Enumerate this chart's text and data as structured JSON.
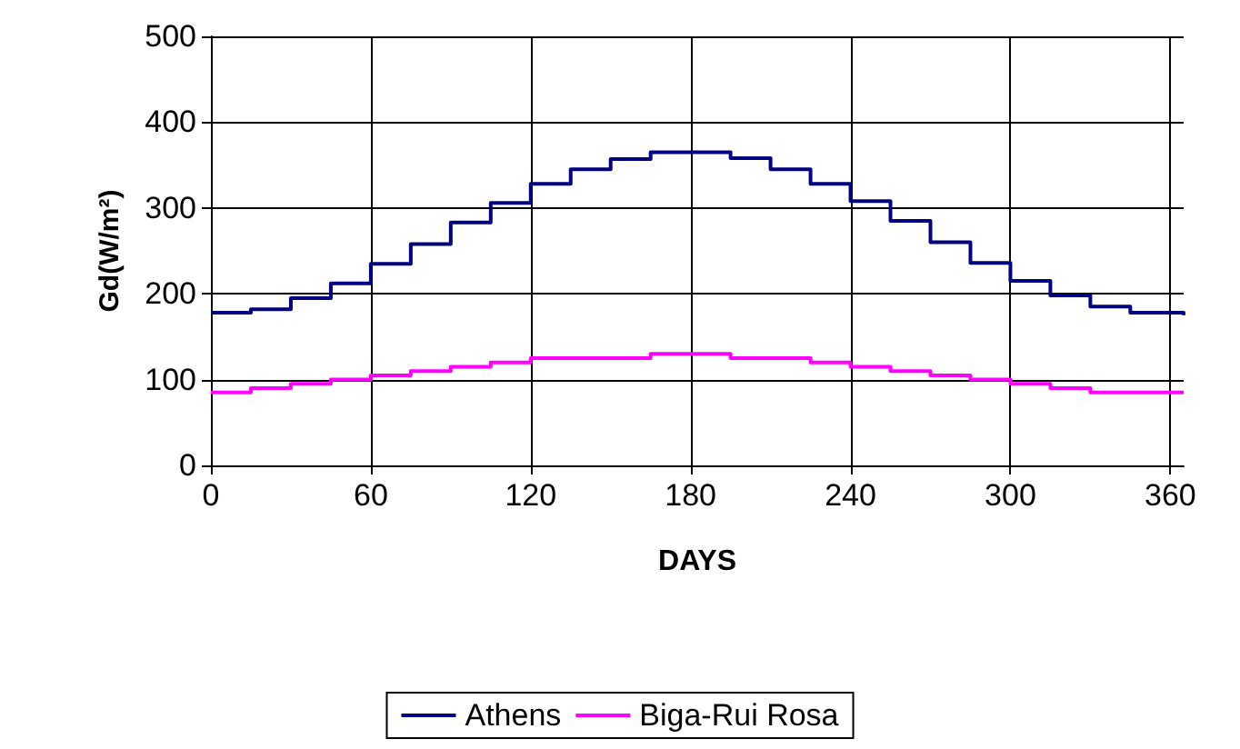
{
  "chart_data": {
    "type": "step",
    "xlabel": "DAYS",
    "ylabel": "Gd(W/m²)",
    "x": [
      0,
      15,
      30,
      45,
      60,
      75,
      90,
      105,
      120,
      135,
      150,
      165,
      180,
      195,
      210,
      225,
      240,
      255,
      270,
      285,
      300,
      315,
      330,
      345,
      365
    ],
    "series": [
      {
        "name": "Athens",
        "color": "#000080",
        "values": [
          178,
          182,
          195,
          212,
          235,
          258,
          283,
          306,
          328,
          345,
          357,
          365,
          365,
          358,
          345,
          328,
          308,
          285,
          260,
          236,
          215,
          198,
          185,
          178,
          175
        ]
      },
      {
        "name": "Biga-Rui Rosa",
        "color": "#ff00ff",
        "values": [
          85,
          90,
          95,
          100,
          105,
          110,
          115,
          120,
          125,
          125,
          125,
          130,
          130,
          125,
          125,
          120,
          115,
          110,
          105,
          100,
          95,
          90,
          85,
          85,
          85
        ]
      }
    ],
    "xlim": [
      0,
      365
    ],
    "xticks": [
      0,
      60,
      120,
      180,
      240,
      300,
      360
    ],
    "ylim": [
      0,
      500
    ],
    "yticks": [
      0,
      100,
      200,
      300,
      400,
      500
    ],
    "grid": true,
    "legend": "bottom",
    "marker": "none",
    "line_style": "solid"
  }
}
